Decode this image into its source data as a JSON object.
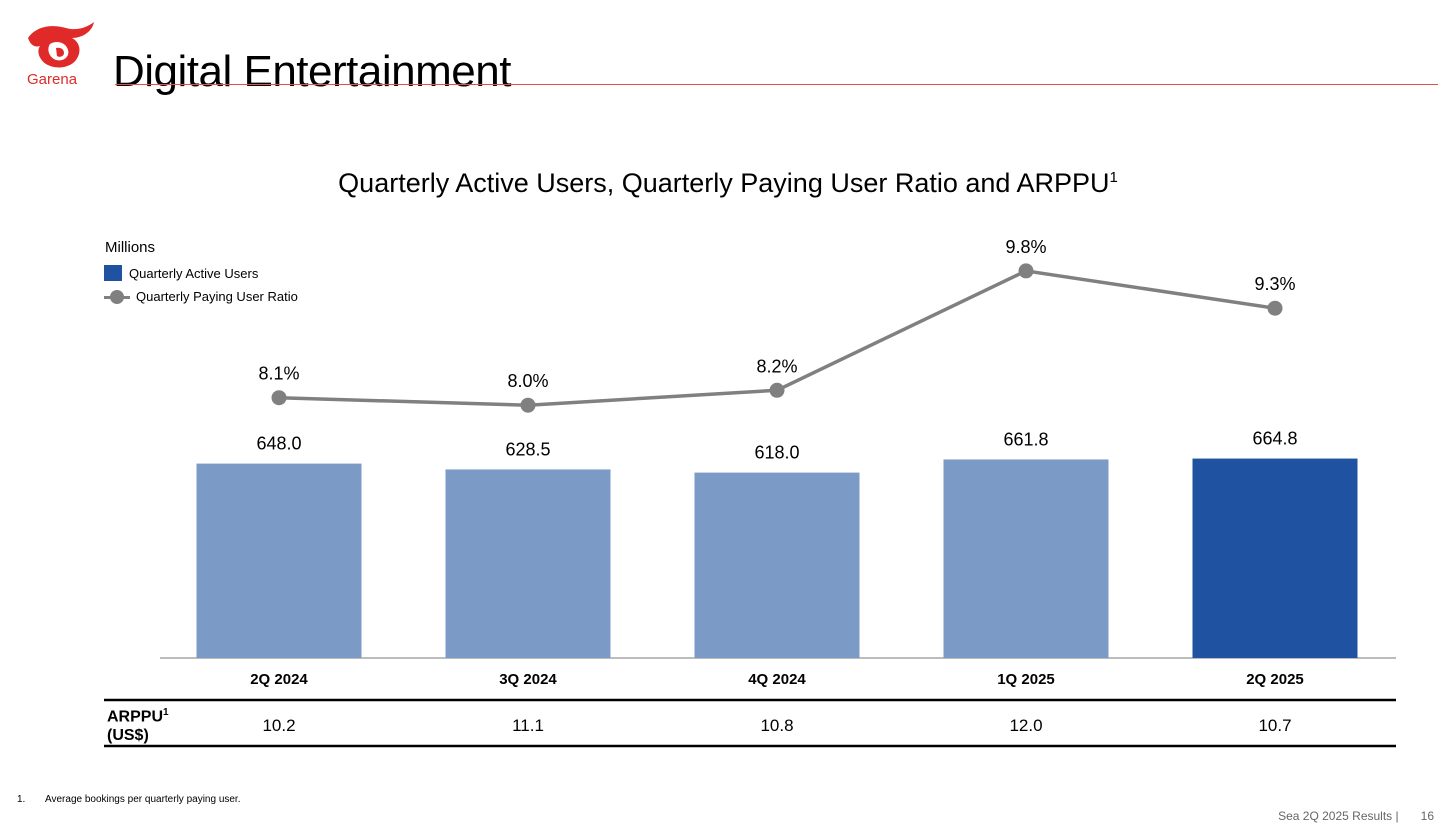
{
  "brand": {
    "name": "Garena",
    "color": "#e02a2a"
  },
  "page": {
    "title": "Digital Entertainment"
  },
  "chart_data": {
    "type": "bar",
    "title": "Quarterly Active Users, Quarterly Paying User Ratio and ARPPU",
    "title_superscript": "1",
    "units_label": "Millions",
    "legend": [
      "Quarterly Active Users",
      "Quarterly Paying User Ratio"
    ],
    "categories": [
      "2Q 2024",
      "3Q 2024",
      "4Q 2024",
      "1Q 2025",
      "2Q 2025"
    ],
    "series": [
      {
        "name": "Quarterly Active Users",
        "type": "bar",
        "values": [
          648.0,
          628.5,
          618.0,
          661.8,
          664.8
        ],
        "labels": [
          "648.0",
          "628.5",
          "618.0",
          "661.8",
          "664.8"
        ],
        "colors": [
          "#7b9ac6",
          "#7b9ac6",
          "#7b9ac6",
          "#7b9ac6",
          "#1f52a0"
        ]
      },
      {
        "name": "Quarterly Paying User Ratio",
        "type": "line",
        "values": [
          8.1,
          8.0,
          8.2,
          9.8,
          9.3
        ],
        "labels": [
          "8.1%",
          "8.0%",
          "8.2%",
          "9.8%",
          "9.3%"
        ],
        "color": "#808080"
      }
    ],
    "table": {
      "label": "ARPPU",
      "label_superscript": "1",
      "unit": "(US$)",
      "values": [
        "10.2",
        "11.1",
        "10.8",
        "12.0",
        "10.7"
      ]
    }
  },
  "footnote": {
    "number": "1.",
    "text": "Average bookings per quarterly paying user."
  },
  "footer": {
    "text": "Sea 2Q 2025 Results |",
    "page": "16"
  }
}
